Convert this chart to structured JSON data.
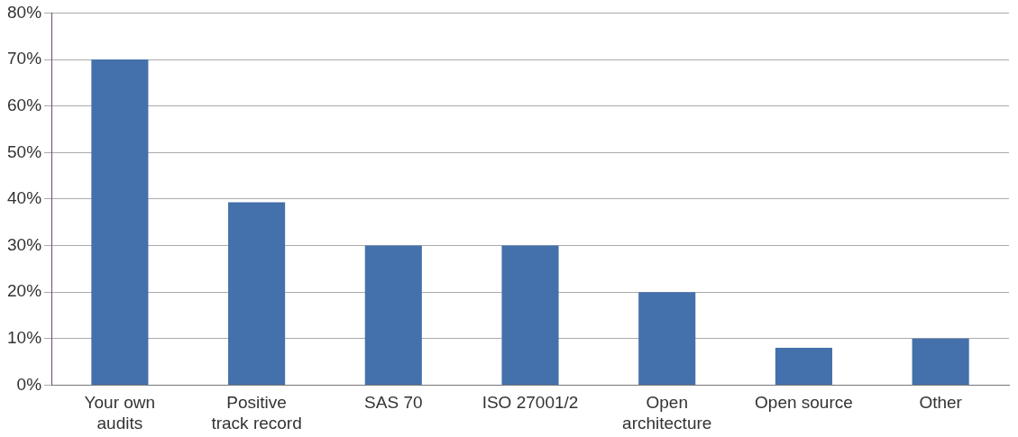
{
  "chart_data": {
    "type": "bar",
    "categories": [
      "Your own audits",
      "Positive track record",
      "SAS 70",
      "ISO 27001/2",
      "Open architecture",
      "Open source",
      "Other"
    ],
    "values": [
      70,
      39.3,
      30,
      30,
      20,
      8,
      10
    ],
    "color": "#4470ab",
    "ylim": [
      0,
      80
    ],
    "yticks": [
      {
        "value": 0,
        "label": "0%"
      },
      {
        "value": 10,
        "label": "10%"
      },
      {
        "value": 20,
        "label": "20%"
      },
      {
        "value": 30,
        "label": "30%"
      },
      {
        "value": 40,
        "label": "40%"
      },
      {
        "value": 50,
        "label": "50%"
      },
      {
        "value": 60,
        "label": "60%"
      },
      {
        "value": 70,
        "label": "70%"
      },
      {
        "value": 80,
        "label": "80%"
      }
    ],
    "grid": "y",
    "legend": false
  }
}
